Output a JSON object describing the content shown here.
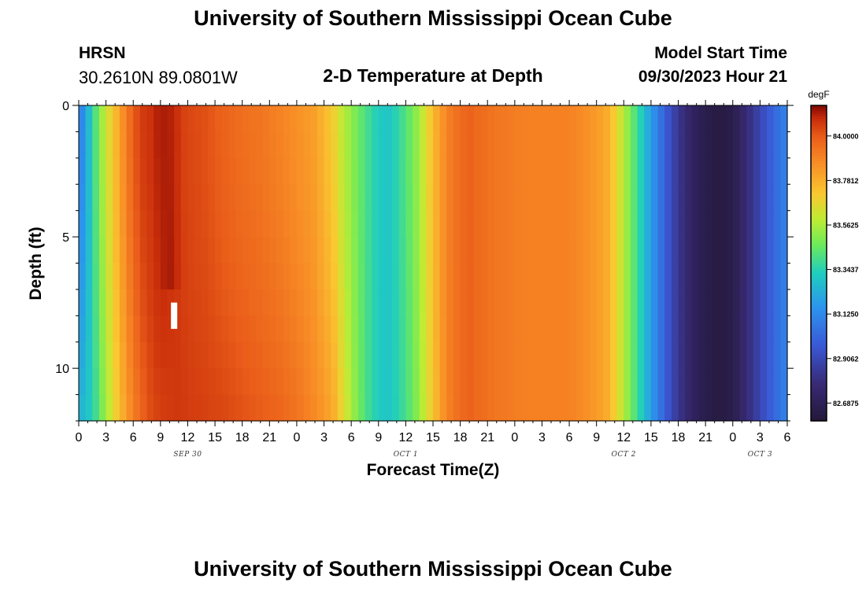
{
  "header": {
    "title": "University of Southern Mississippi Ocean Cube",
    "station": "HRSN",
    "coords": "30.2610N  89.0801W",
    "subtitle": "2-D Temperature at Depth",
    "model_start_label": "Model Start Time",
    "model_start_value": "09/30/2023 Hour 21"
  },
  "footer": {
    "title": "University of Southern Mississippi Ocean Cube"
  },
  "chart_data": {
    "type": "heatmap",
    "title": "2-D Temperature at Depth",
    "xlabel": "Forecast Time(Z)",
    "ylabel": "Depth (ft)",
    "x_ticks": [
      "0",
      "3",
      "6",
      "9",
      "12",
      "15",
      "18",
      "21",
      "0",
      "3",
      "6",
      "9",
      "12",
      "15",
      "18",
      "21",
      "0",
      "3",
      "6",
      "9",
      "12",
      "15",
      "18",
      "21",
      "0",
      "3",
      "6"
    ],
    "x_day_labels": [
      {
        "label": "SEP 30",
        "hours": 12
      },
      {
        "label": "OCT 1",
        "hours": 36
      },
      {
        "label": "OCT 2",
        "hours": 60
      },
      {
        "label": "OCT 3",
        "hours": 75
      }
    ],
    "xlim_hours": [
      0,
      78
    ],
    "y_ticks": [
      "0",
      "5",
      "10"
    ],
    "ylim_ft": [
      0,
      12
    ],
    "colorbar": {
      "unit": "degF",
      "labels": [
        "84.0000",
        "83.7812",
        "83.5625",
        "83.3437",
        "83.1250",
        "82.9062",
        "82.6875"
      ],
      "values": [
        84.0,
        83.78125,
        83.5625,
        83.34375,
        83.125,
        82.90625,
        82.6875
      ],
      "range": [
        82.6,
        84.15
      ]
    },
    "time_profile": {
      "hours": [
        0,
        1,
        2,
        3,
        4,
        5,
        6,
        7,
        8,
        9,
        10,
        11,
        12,
        14,
        16,
        18,
        20,
        22,
        24,
        26,
        28,
        29,
        30,
        31,
        32,
        33,
        34,
        35,
        36,
        37,
        38,
        39,
        40,
        41,
        42,
        43,
        44,
        46,
        48,
        50,
        52,
        54,
        56,
        58,
        59,
        60,
        61,
        62,
        63,
        64,
        65,
        66,
        67,
        68,
        69,
        70,
        71,
        72,
        73,
        74,
        75,
        76,
        77,
        78
      ],
      "surface_degF": [
        83.05,
        83.25,
        83.45,
        83.62,
        83.75,
        83.88,
        84.0,
        84.06,
        84.08,
        84.12,
        84.09,
        84.06,
        84.04,
        84.02,
        83.98,
        83.95,
        83.93,
        83.9,
        83.86,
        83.82,
        83.7,
        83.6,
        83.52,
        83.45,
        83.38,
        83.32,
        83.3,
        83.35,
        83.42,
        83.5,
        83.62,
        83.75,
        83.85,
        83.92,
        83.96,
        83.98,
        83.96,
        83.93,
        83.91,
        83.9,
        83.9,
        83.9,
        83.86,
        83.8,
        83.7,
        83.58,
        83.45,
        83.32,
        83.18,
        83.06,
        82.94,
        82.84,
        82.76,
        82.7,
        82.66,
        82.64,
        82.64,
        82.66,
        82.74,
        82.82,
        82.9,
        82.98,
        83.05,
        83.12
      ],
      "bottom_degF": [
        83.25,
        83.3,
        83.4,
        83.55,
        83.68,
        83.8,
        83.9,
        83.98,
        84.03,
        84.05,
        84.06,
        84.07,
        84.06,
        84.05,
        84.04,
        84.02,
        84.0,
        83.98,
        83.94,
        83.88,
        83.8,
        83.68,
        83.56,
        83.46,
        83.38,
        83.32,
        83.3,
        83.34,
        83.4,
        83.48,
        83.6,
        83.72,
        83.84,
        83.92,
        83.96,
        83.98,
        83.96,
        83.93,
        83.91,
        83.9,
        83.9,
        83.9,
        83.86,
        83.8,
        83.7,
        83.58,
        83.45,
        83.32,
        83.18,
        83.06,
        82.94,
        82.84,
        82.76,
        82.7,
        82.66,
        82.64,
        82.64,
        82.66,
        82.74,
        82.82,
        82.9,
        82.98,
        83.05,
        83.12
      ]
    },
    "hot_core": {
      "hour_range": [
        9,
        11
      ],
      "depth_ft": [
        0,
        7
      ],
      "peak_degF": 84.12
    },
    "missing_cell": {
      "hour": 10.5,
      "depth_ft": [
        7.5,
        8.5
      ]
    }
  }
}
